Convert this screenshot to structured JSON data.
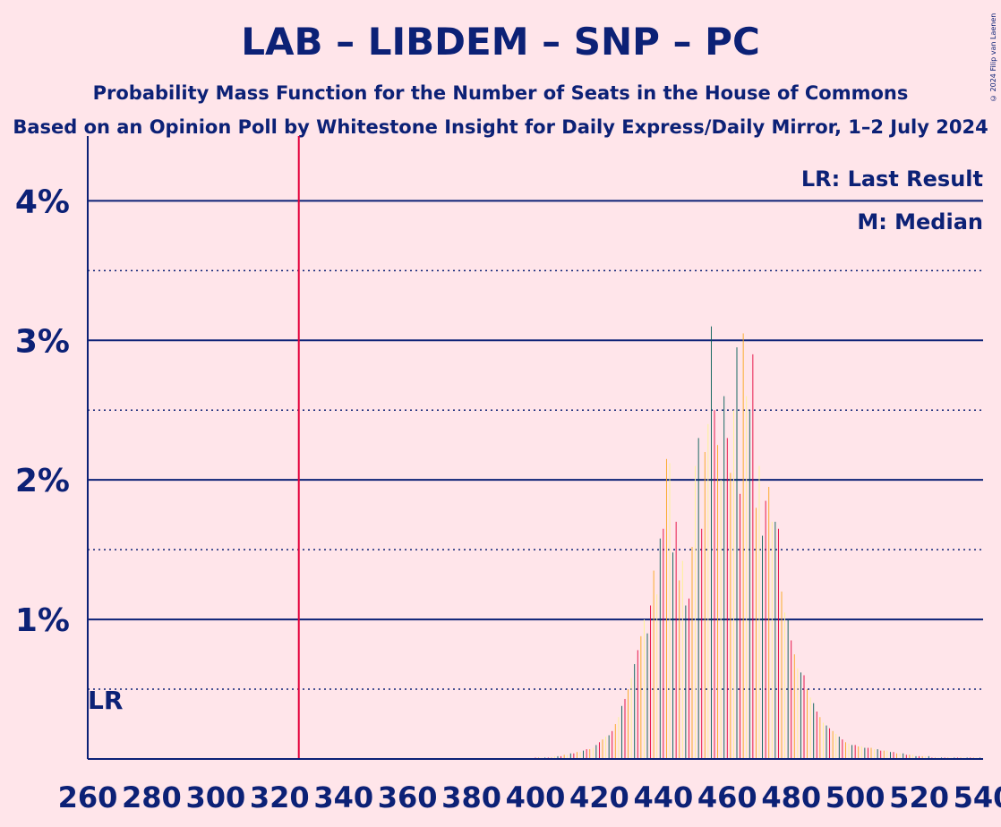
{
  "title": "LAB – LIBDEM – SNP – PC",
  "subtitle": "Probability Mass Function for the Number of Seats in the House of Commons",
  "subtitle2": "Based on an Opinion Poll by Whitestone Insight for Daily Express/Daily Mirror, 1–2 July 2024",
  "copyright": "© 2024 Filip van Laenen",
  "legend": {
    "last_result": "LR: Last Result",
    "median": "M: Median"
  },
  "lr_label": "LR",
  "colors": {
    "background": "#FFE5EA",
    "axis": "#0C2176",
    "lab": "#E4003B",
    "libdem": "#FAA61A",
    "snp": "#FDF38E",
    "pc": "#005B54",
    "majority_line": "#E4003B"
  },
  "chart_data": {
    "type": "bar",
    "xlabel": "",
    "ylabel": "",
    "xlim": [
      260,
      540
    ],
    "ylim": [
      0,
      0.044
    ],
    "x_ticks": [
      "260",
      "280",
      "300",
      "320",
      "340",
      "360",
      "380",
      "400",
      "420",
      "440",
      "460",
      "480",
      "500",
      "520",
      "540"
    ],
    "y_ticks": [
      "1%",
      "2%",
      "3%",
      "4%"
    ],
    "majority_line_x": 326,
    "last_result_x": 260,
    "series": [
      {
        "colors": [
          "#E4003B",
          "#FAA61A",
          "#FDF38E",
          "#005B54"
        ],
        "x": [
          400,
          401,
          402,
          403,
          404,
          405,
          406,
          407,
          408,
          409,
          410,
          411,
          412,
          413,
          414,
          415,
          416,
          417,
          418,
          419,
          420,
          421,
          422,
          423,
          424,
          425,
          426,
          427,
          428,
          429,
          430,
          431,
          432,
          433,
          434,
          435,
          436,
          437,
          438,
          439,
          440,
          441,
          442,
          443,
          444,
          445,
          446,
          447,
          448,
          449,
          450,
          451,
          452,
          453,
          454,
          455,
          456,
          457,
          458,
          459,
          460,
          461,
          462,
          463,
          464,
          465,
          466,
          467,
          468,
          469,
          470,
          471,
          472,
          473,
          474,
          475,
          476,
          477,
          478,
          479,
          480,
          481,
          482,
          483,
          484,
          485,
          486,
          487,
          488,
          489,
          490,
          491,
          492,
          493,
          494,
          495,
          496,
          497,
          498,
          499,
          500,
          501,
          502,
          503,
          504,
          505,
          506,
          507,
          508,
          509,
          510,
          511,
          512,
          513,
          514,
          515,
          516,
          517,
          518,
          519,
          520,
          521,
          522,
          523,
          524,
          525,
          526,
          527,
          528,
          529,
          530,
          531,
          532,
          533,
          534,
          535,
          536,
          537,
          538,
          539
        ],
        "values": [
          0.0001,
          0.0001,
          0.0001,
          0.0001,
          0.0001,
          0.0001,
          0.0002,
          0.0002,
          0.0002,
          0.0003,
          0.0003,
          0.0004,
          0.0004,
          0.0005,
          0.0005,
          0.0006,
          0.0007,
          0.0007,
          0.0008,
          0.001,
          0.0012,
          0.0014,
          0.0016,
          0.0017,
          0.002,
          0.0025,
          0.003,
          0.0038,
          0.0043,
          0.005,
          0.0058,
          0.0068,
          0.0078,
          0.0088,
          0.01,
          0.009,
          0.011,
          0.0135,
          0.0118,
          0.0158,
          0.0165,
          0.0215,
          0.0212,
          0.0148,
          0.017,
          0.0128,
          0.0142,
          0.011,
          0.0115,
          0.0152,
          0.021,
          0.023,
          0.0165,
          0.022,
          0.024,
          0.031,
          0.025,
          0.0225,
          0.02,
          0.026,
          0.023,
          0.0205,
          0.025,
          0.0295,
          0.019,
          0.0305,
          0.026,
          0.025,
          0.029,
          0.018,
          0.021,
          0.016,
          0.0185,
          0.0195,
          0.017,
          0.017,
          0.0165,
          0.012,
          0.0105,
          0.01,
          0.0085,
          0.0075,
          0.0065,
          0.0062,
          0.006,
          0.005,
          0.0044,
          0.004,
          0.0034,
          0.003,
          0.0026,
          0.0024,
          0.0022,
          0.002,
          0.0018,
          0.0016,
          0.0014,
          0.0012,
          0.0011,
          0.001,
          0.001,
          0.0009,
          0.0009,
          0.0008,
          0.0008,
          0.0008,
          0.0007,
          0.0007,
          0.0006,
          0.0006,
          0.0006,
          0.0005,
          0.0005,
          0.0004,
          0.0004,
          0.0004,
          0.0003,
          0.0003,
          0.0003,
          0.0002,
          0.0002,
          0.0002,
          0.0002,
          0.0002,
          0.0001,
          0.0001,
          0.0001,
          0.0001,
          0.0001,
          0.0001,
          0.0001,
          0.0001,
          0.0001,
          0.0001,
          0.0001,
          0.0001,
          0.0001,
          0.0001,
          0.0001,
          0.0001
        ]
      }
    ]
  }
}
